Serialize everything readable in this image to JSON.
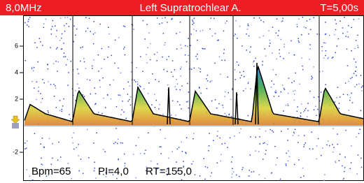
{
  "header": {
    "frequency": "8,0MHz",
    "vessel": "Left Supratrochlear A.",
    "time": "T=5,00s"
  },
  "scale": {
    "ticks": [
      6,
      4,
      2,
      -2
    ]
  },
  "measurements": [
    "Bpm=65",
    "PI=4,0",
    "RT=155,0"
  ]
}
